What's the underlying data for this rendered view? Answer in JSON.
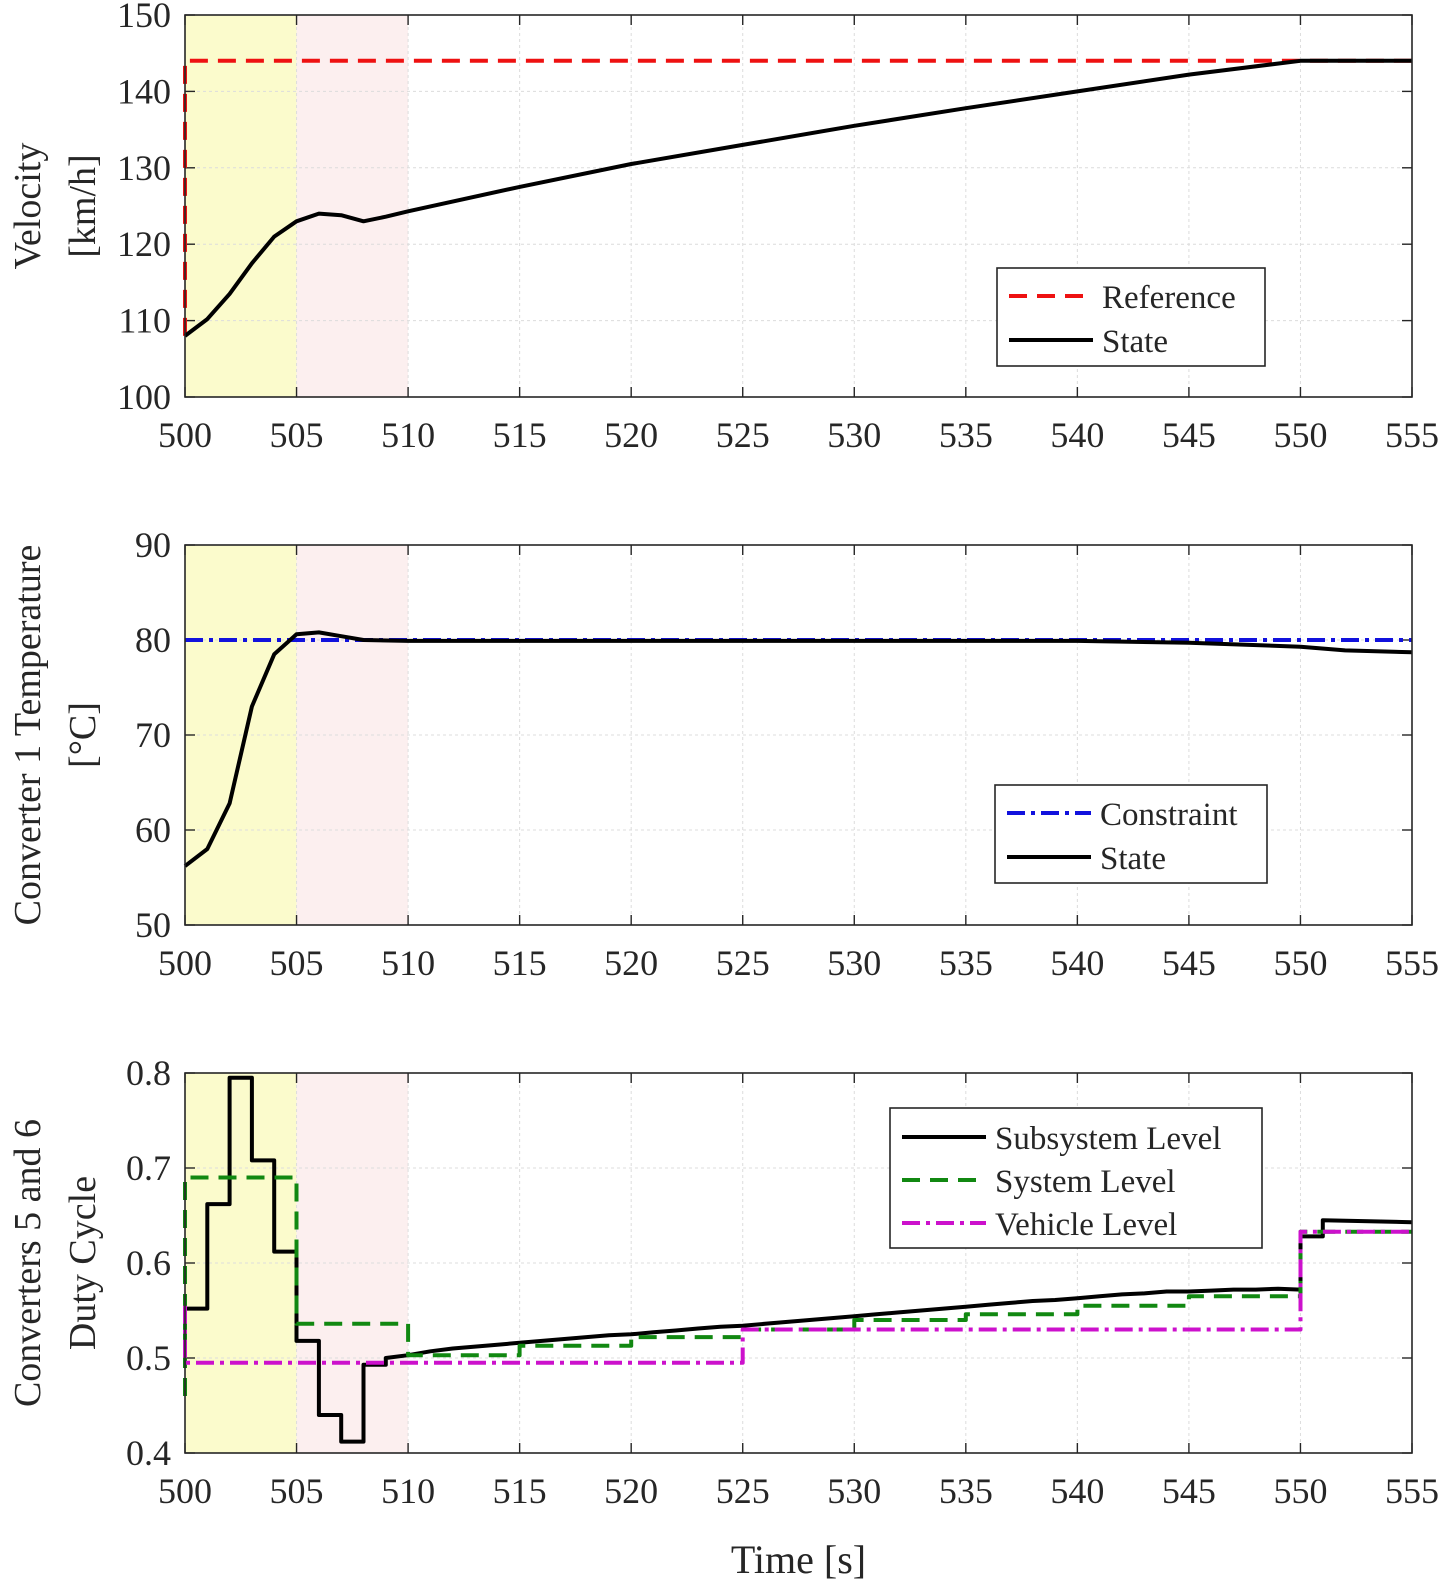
{
  "chart_data": [
    {
      "type": "line",
      "ylabel": [
        "Velocity",
        "[km/h]"
      ],
      "xlabel": "",
      "xlim": [
        500,
        555
      ],
      "ylim": [
        100,
        150
      ],
      "xticks": [
        "500",
        "505",
        "510",
        "515",
        "520",
        "525",
        "530",
        "535",
        "540",
        "545",
        "550",
        "555"
      ],
      "yticks": [
        "100",
        "110",
        "120",
        "130",
        "140",
        "150"
      ],
      "grid": true,
      "shaded_regions": [
        {
          "x": [
            500,
            505
          ],
          "color": "#fbfbcc"
        },
        {
          "x": [
            505,
            510
          ],
          "color": "#fcefef"
        }
      ],
      "legend": {
        "placement": "right",
        "entries": [
          "Reference",
          "State"
        ]
      },
      "series": [
        {
          "name": "Reference",
          "color": "#ee1111",
          "style": "dashed",
          "x": [
            500,
            500,
            555
          ],
          "y": [
            108,
            144,
            144
          ]
        },
        {
          "name": "State",
          "color": "#000000",
          "style": "solid",
          "x": [
            500,
            501,
            502,
            503,
            504,
            505,
            506,
            507,
            508,
            509,
            510,
            515,
            520,
            525,
            530,
            535,
            540,
            545,
            550,
            555
          ],
          "y": [
            108,
            110.2,
            113.5,
            117.5,
            121,
            123,
            124,
            123.8,
            123,
            123.6,
            124.3,
            127.5,
            130.5,
            133,
            135.5,
            137.8,
            140,
            142.2,
            144,
            144
          ]
        }
      ]
    },
    {
      "type": "line",
      "ylabel": [
        "Converter 1 Temperature",
        "[°C]"
      ],
      "xlabel": "",
      "xlim": [
        500,
        555
      ],
      "ylim": [
        50,
        90
      ],
      "xticks": [
        "500",
        "505",
        "510",
        "515",
        "520",
        "525",
        "530",
        "535",
        "540",
        "545",
        "550",
        "555"
      ],
      "yticks": [
        "50",
        "60",
        "70",
        "80",
        "90"
      ],
      "grid": true,
      "shaded_regions": [
        {
          "x": [
            500,
            505
          ],
          "color": "#fbfbcc"
        },
        {
          "x": [
            505,
            510
          ],
          "color": "#fcefef"
        }
      ],
      "legend": {
        "placement": "right",
        "entries": [
          "Constraint",
          "State"
        ]
      },
      "series": [
        {
          "name": "Constraint",
          "color": "#1111dd",
          "style": "dashdot",
          "x": [
            500,
            555
          ],
          "y": [
            80,
            80
          ]
        },
        {
          "name": "State",
          "color": "#000000",
          "style": "solid",
          "x": [
            500,
            501,
            502,
            503,
            504,
            505,
            506,
            507,
            508,
            510,
            520,
            530,
            540,
            545,
            550,
            552,
            555
          ],
          "y": [
            56.2,
            58,
            62.8,
            73,
            78.5,
            80.6,
            80.8,
            80.4,
            80,
            79.9,
            79.9,
            79.9,
            79.9,
            79.7,
            79.3,
            78.9,
            78.7
          ]
        }
      ]
    },
    {
      "type": "line",
      "ylabel": [
        "Converters 5 and 6",
        "Duty Cycle"
      ],
      "xlabel": "Time [s]",
      "xlim": [
        500,
        555
      ],
      "ylim": [
        0.4,
        0.8
      ],
      "xticks": [
        "500",
        "505",
        "510",
        "515",
        "520",
        "525",
        "530",
        "535",
        "540",
        "545",
        "550",
        "555"
      ],
      "yticks": [
        "0.4",
        "0.5",
        "0.6",
        "0.7",
        "0.8"
      ],
      "grid": true,
      "shaded_regions": [
        {
          "x": [
            500,
            505
          ],
          "color": "#fbfbcc"
        },
        {
          "x": [
            505,
            510
          ],
          "color": "#fcefef"
        }
      ],
      "legend": {
        "placement": "top-right",
        "entries": [
          "Subsystem Level",
          "System Level",
          "Vehicle Level"
        ]
      },
      "series": [
        {
          "name": "Subsystem Level",
          "color": "#000000",
          "style": "solid",
          "x": [
            500,
            500,
            501,
            501,
            502,
            502,
            503,
            503,
            504,
            504,
            505,
            505,
            506,
            506,
            507,
            507,
            508,
            508,
            509,
            509,
            510,
            511,
            512,
            513,
            514,
            515,
            516,
            517,
            518,
            519,
            520,
            521,
            522,
            523,
            524,
            525,
            526,
            527,
            528,
            529,
            530,
            531,
            532,
            533,
            534,
            535,
            536,
            537,
            538,
            539,
            540,
            541,
            542,
            543,
            544,
            545,
            546,
            547,
            548,
            549,
            550,
            550,
            551,
            551,
            555
          ],
          "y": [
            0.552,
            0.552,
            0.552,
            0.662,
            0.662,
            0.795,
            0.795,
            0.708,
            0.708,
            0.612,
            0.612,
            0.518,
            0.518,
            0.44,
            0.44,
            0.412,
            0.412,
            0.493,
            0.493,
            0.5,
            0.503,
            0.507,
            0.51,
            0.512,
            0.514,
            0.516,
            0.518,
            0.52,
            0.522,
            0.524,
            0.525,
            0.527,
            0.529,
            0.531,
            0.533,
            0.534,
            0.536,
            0.538,
            0.54,
            0.542,
            0.544,
            0.546,
            0.548,
            0.55,
            0.552,
            0.554,
            0.556,
            0.558,
            0.56,
            0.561,
            0.563,
            0.565,
            0.567,
            0.568,
            0.57,
            0.57,
            0.571,
            0.572,
            0.572,
            0.573,
            0.572,
            0.628,
            0.628,
            0.645,
            0.643
          ]
        },
        {
          "name": "System Level",
          "color": "#118811",
          "style": "dashed",
          "x": [
            500,
            500,
            505,
            505,
            510,
            510,
            515,
            515,
            520,
            520,
            525,
            525,
            530,
            530,
            535,
            535,
            540,
            540,
            545,
            545,
            550,
            550,
            555
          ],
          "y": [
            0.46,
            0.69,
            0.69,
            0.536,
            0.536,
            0.503,
            0.503,
            0.513,
            0.513,
            0.522,
            0.522,
            0.53,
            0.53,
            0.54,
            0.54,
            0.546,
            0.546,
            0.555,
            0.555,
            0.565,
            0.565,
            0.633,
            0.633
          ]
        },
        {
          "name": "Vehicle Level",
          "color": "#cc11cc",
          "style": "dashdot",
          "x": [
            500,
            500,
            525,
            525,
            550,
            550,
            555
          ],
          "y": [
            0.555,
            0.495,
            0.495,
            0.53,
            0.53,
            0.633,
            0.633
          ]
        }
      ]
    }
  ]
}
